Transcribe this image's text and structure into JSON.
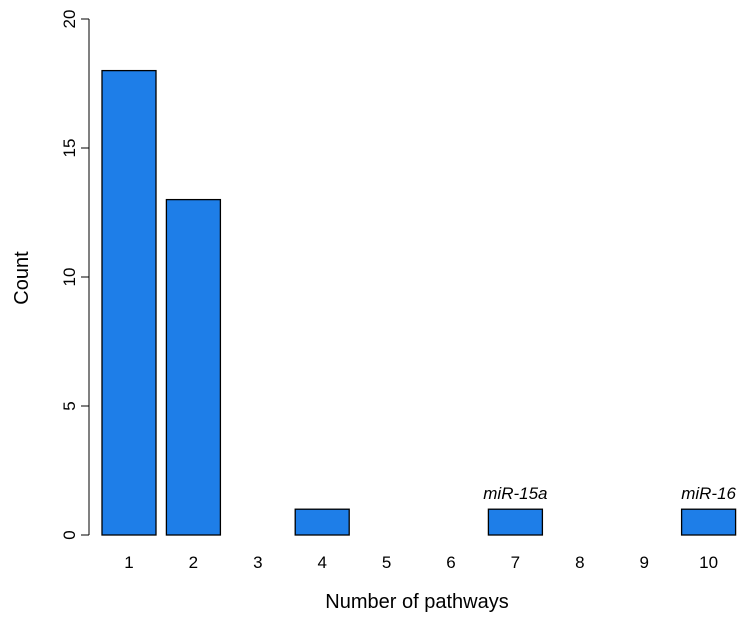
{
  "chart_data": {
    "type": "bar",
    "xlabel": "Number of pathways",
    "ylabel": "Count",
    "categories": [
      "1",
      "2",
      "3",
      "4",
      "5",
      "6",
      "7",
      "8",
      "9",
      "10"
    ],
    "values": [
      18,
      13,
      0,
      1,
      0,
      0,
      1,
      0,
      0,
      1
    ],
    "annotations": [
      "",
      "",
      "",
      "",
      "",
      "",
      "miR-15a",
      "",
      "",
      "miR-16"
    ],
    "ylim": [
      0,
      20
    ],
    "yticks": [
      "0",
      "5",
      "10",
      "15",
      "20"
    ],
    "grid": false,
    "legend": "none",
    "colors": {
      "bar_fill": "#1e7ee8",
      "bar_stroke": "#000000",
      "axis": "#000000"
    }
  }
}
